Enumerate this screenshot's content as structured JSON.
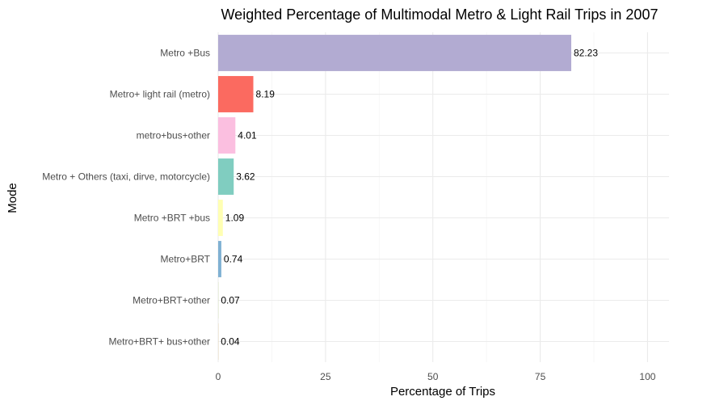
{
  "chart_data": {
    "type": "bar",
    "orientation": "horizontal",
    "title": "Weighted Percentage of  Multimodal Metro & Light Rail Trips in 2007",
    "xlabel": "Percentage of Trips",
    "ylabel": "Mode",
    "xlim": [
      0,
      105
    ],
    "xticks": [
      0,
      25,
      50,
      75,
      100
    ],
    "grid": true,
    "legend": "none",
    "categories": [
      "Metro +Bus",
      "Metro+ light rail (metro)",
      "metro+bus+other",
      "Metro + Others (taxi, dirve, motorcycle)",
      "Metro +BRT +bus",
      "Metro+BRT",
      "Metro+BRT+other",
      "Metro+BRT+ bus+other"
    ],
    "values": [
      82.23,
      8.19,
      4.01,
      3.62,
      1.09,
      0.74,
      0.07,
      0.04
    ],
    "value_labels": [
      "82.23",
      "8.19",
      "4.01",
      "3.62",
      "1.09",
      "0.74",
      "0.07",
      "0.04"
    ],
    "colors": [
      "#b2abd2",
      "#fb6a60",
      "#fbbfe0",
      "#80cdc0",
      "#ffffb3",
      "#80b1d3",
      "#d9e3c3",
      "#e5d8bd"
    ]
  }
}
